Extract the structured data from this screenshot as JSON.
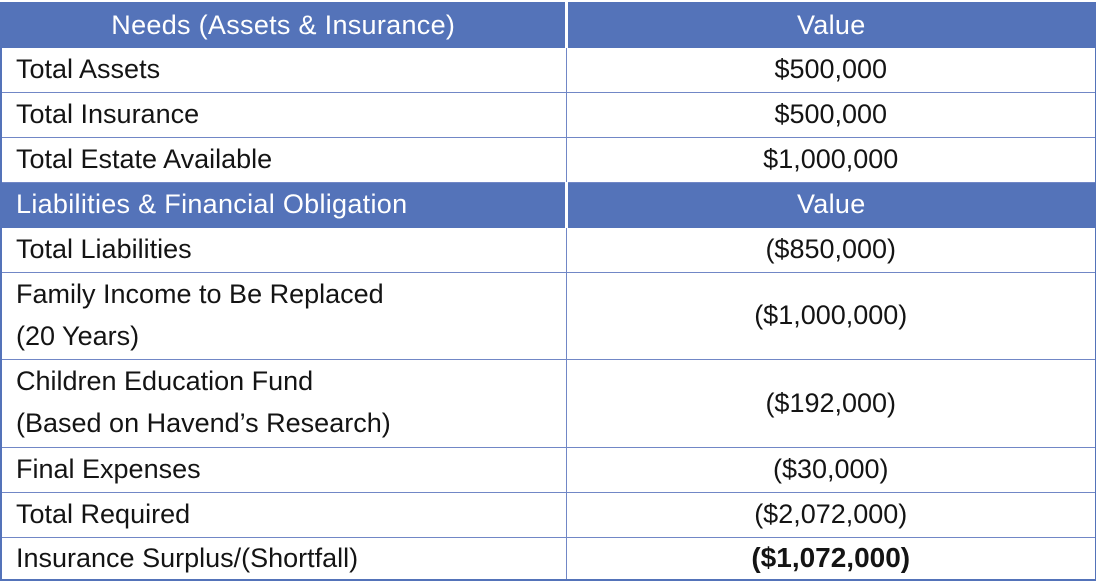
{
  "theme": {
    "header_bg": "#5473B9",
    "inner_border": "#7187C6",
    "outer_border": "#5473B9",
    "header_text": "#FFFFFF",
    "body_text": "#141414",
    "page_bg": "#FFFFFF"
  },
  "table": {
    "sections": [
      {
        "header": {
          "title": "Needs (Assets & Insurance)",
          "value_label": "Value"
        },
        "rows": [
          {
            "label": "Total Assets",
            "value": "$500,000"
          },
          {
            "label": "Total Insurance",
            "value": "$500,000"
          },
          {
            "label": "Total Estate Available",
            "value": "$1,000,000"
          }
        ]
      },
      {
        "header": {
          "title": "Liabilities & Financial Obligation",
          "value_label": "Value"
        },
        "rows": [
          {
            "label": "Total Liabilities",
            "value": "($850,000)"
          },
          {
            "label": "Family Income to Be Replaced\n(20 Years)",
            "value": "($1,000,000)"
          },
          {
            "label": "Children Education Fund\n(Based on Havend’s Research)",
            "value": "($192,000)"
          },
          {
            "label": "Final Expenses",
            "value": "($30,000)"
          },
          {
            "label": "Total Required",
            "value": "($2,072,000)"
          },
          {
            "label": "Insurance Surplus/(Shortfall)",
            "value": "($1,072,000)"
          }
        ]
      }
    ]
  }
}
